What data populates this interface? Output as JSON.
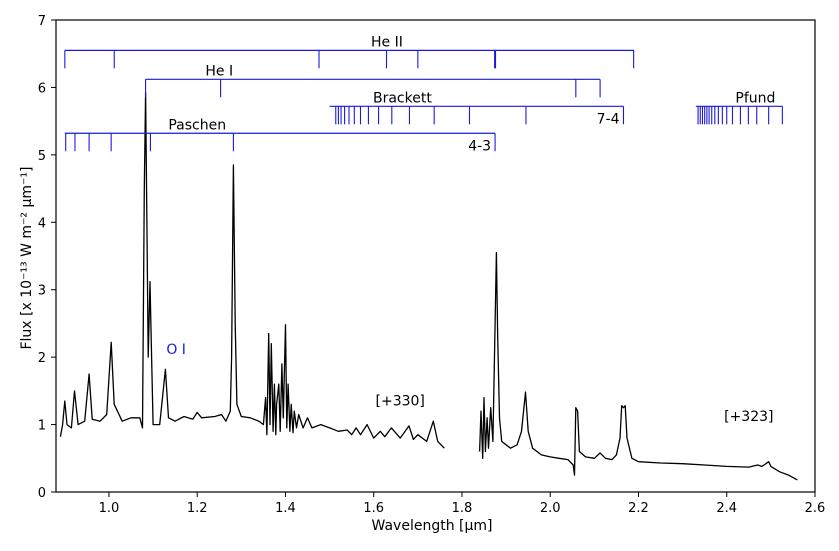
{
  "chart_data": {
    "type": "line",
    "xlabel": "Wavelength [μm]",
    "ylabel": "Flux [x 10⁻¹³ W m⁻² μm⁻¹]",
    "xlim": [
      0.88,
      2.6
    ],
    "ylim": [
      0,
      7
    ],
    "xticks": [
      "1.0",
      "1.2",
      "1.4",
      "1.6",
      "1.8",
      "2.0",
      "2.2",
      "2.4",
      "2.6"
    ],
    "yticks": [
      "0",
      "1",
      "2",
      "3",
      "4",
      "5",
      "6",
      "7"
    ],
    "grid": false,
    "line_color": "#000000",
    "marker_color": "#1a1adc",
    "annotations": [
      {
        "text": "[+330]",
        "x": 1.66,
        "y": 1.28
      },
      {
        "text": "[+323]",
        "x": 2.45,
        "y": 1.05
      }
    ],
    "line_series": [
      {
        "name": "He II",
        "bar_y": 6.55,
        "x_start": 0.9,
        "x_end": 2.19,
        "label_x": 1.63,
        "lines": [
          0.9,
          1.012,
          1.476,
          1.629,
          1.7,
          1.874,
          1.876,
          2.189
        ]
      },
      {
        "name": "He I",
        "bar_y": 6.12,
        "x_start": 1.083,
        "x_end": 2.113,
        "label_x": 1.25,
        "lines": [
          1.083,
          1.253,
          2.058,
          2.113
        ]
      },
      {
        "name": "Brackett",
        "bar_y": 5.72,
        "x_start": 1.5,
        "x_end": 2.166,
        "label_x": 1.665,
        "end_label": "7-4",
        "lines": [
          1.514,
          1.52,
          1.526,
          1.534,
          1.544,
          1.556,
          1.57,
          1.588,
          1.611,
          1.641,
          1.681,
          1.737,
          1.817,
          1.945,
          2.166
        ]
      },
      {
        "name": "Pfund",
        "bar_y": 5.72,
        "x_start": 2.33,
        "x_end": 2.526,
        "label_x": 2.465,
        "lines": [
          2.335,
          2.34,
          2.345,
          2.35,
          2.355,
          2.36,
          2.366,
          2.373,
          2.381,
          2.39,
          2.4,
          2.413,
          2.431,
          2.449,
          2.468,
          2.495,
          2.526
        ]
      },
      {
        "name": "Paschen",
        "bar_y": 5.32,
        "x_start": 0.9,
        "x_end": 1.875,
        "label_x": 1.2,
        "end_label": "4-3",
        "lines": [
          0.902,
          0.923,
          0.955,
          1.005,
          1.094,
          1.282,
          1.875
        ]
      }
    ],
    "oi_label": {
      "text": "O I",
      "x": 1.13,
      "y": 2.05
    },
    "spectrum_segments": [
      [
        [
          0.89,
          0.82
        ],
        [
          0.895,
          1.0
        ],
        [
          0.9,
          1.35
        ],
        [
          0.905,
          1.0
        ],
        [
          0.915,
          0.95
        ],
        [
          0.922,
          1.5
        ],
        [
          0.93,
          1.0
        ],
        [
          0.945,
          1.05
        ],
        [
          0.955,
          1.75
        ],
        [
          0.962,
          1.08
        ],
        [
          0.98,
          1.05
        ],
        [
          0.995,
          1.15
        ],
        [
          1.005,
          2.22
        ],
        [
          1.012,
          1.3
        ],
        [
          1.03,
          1.05
        ],
        [
          1.05,
          1.1
        ],
        [
          1.07,
          1.1
        ],
        [
          1.076,
          0.95
        ],
        [
          1.08,
          4.5
        ],
        [
          1.083,
          5.92
        ],
        [
          1.086,
          4.0
        ],
        [
          1.089,
          2.0
        ],
        [
          1.093,
          3.12
        ],
        [
          1.096,
          2.2
        ],
        [
          1.1,
          1.0
        ],
        [
          1.115,
          1.0
        ],
        [
          1.128,
          1.82
        ],
        [
          1.135,
          1.1
        ],
        [
          1.15,
          1.05
        ],
        [
          1.17,
          1.12
        ],
        [
          1.19,
          1.08
        ],
        [
          1.2,
          1.18
        ],
        [
          1.21,
          1.1
        ],
        [
          1.24,
          1.12
        ],
        [
          1.255,
          1.15
        ],
        [
          1.265,
          1.05
        ],
        [
          1.275,
          1.2
        ],
        [
          1.278,
          2.0
        ],
        [
          1.282,
          4.85
        ],
        [
          1.286,
          2.5
        ],
        [
          1.29,
          1.3
        ],
        [
          1.3,
          1.12
        ],
        [
          1.32,
          1.1
        ],
        [
          1.34,
          1.05
        ],
        [
          1.35,
          1.0
        ],
        [
          1.355,
          1.4
        ],
        [
          1.358,
          0.85
        ],
        [
          1.362,
          2.35
        ],
        [
          1.365,
          1.0
        ],
        [
          1.368,
          2.2
        ],
        [
          1.372,
          0.9
        ],
        [
          1.375,
          1.6
        ],
        [
          1.378,
          0.85
        ],
        [
          1.38,
          1.3
        ],
        [
          1.385,
          1.6
        ],
        [
          1.388,
          0.9
        ],
        [
          1.392,
          1.9
        ],
        [
          1.395,
          1.1
        ],
        [
          1.4,
          2.48
        ],
        [
          1.403,
          0.95
        ],
        [
          1.406,
          1.6
        ],
        [
          1.41,
          0.9
        ],
        [
          1.413,
          1.3
        ],
        [
          1.417,
          0.88
        ],
        [
          1.42,
          1.2
        ],
        [
          1.425,
          0.95
        ],
        [
          1.43,
          1.15
        ],
        [
          1.44,
          0.95
        ],
        [
          1.45,
          1.1
        ],
        [
          1.46,
          0.95
        ],
        [
          1.48,
          1.0
        ],
        [
          1.5,
          0.95
        ],
        [
          1.52,
          0.9
        ],
        [
          1.54,
          0.92
        ],
        [
          1.55,
          0.85
        ],
        [
          1.56,
          0.95
        ],
        [
          1.57,
          0.85
        ],
        [
          1.585,
          1.0
        ],
        [
          1.6,
          0.8
        ],
        [
          1.615,
          0.9
        ],
        [
          1.625,
          0.82
        ],
        [
          1.64,
          0.95
        ],
        [
          1.66,
          0.8
        ],
        [
          1.68,
          0.98
        ],
        [
          1.69,
          0.78
        ],
        [
          1.7,
          0.85
        ],
        [
          1.72,
          0.75
        ],
        [
          1.735,
          1.05
        ],
        [
          1.745,
          0.75
        ],
        [
          1.76,
          0.65
        ]
      ],
      [
        [
          1.84,
          0.6
        ],
        [
          1.843,
          1.2
        ],
        [
          1.847,
          0.5
        ],
        [
          1.85,
          1.4
        ],
        [
          1.853,
          0.6
        ],
        [
          1.857,
          1.1
        ],
        [
          1.86,
          0.65
        ],
        [
          1.865,
          1.25
        ],
        [
          1.87,
          0.75
        ],
        [
          1.875,
          2.5
        ],
        [
          1.878,
          3.55
        ],
        [
          1.881,
          2.3
        ],
        [
          1.885,
          1.1
        ],
        [
          1.89,
          0.75
        ],
        [
          1.9,
          0.7
        ],
        [
          1.91,
          0.65
        ],
        [
          1.925,
          0.7
        ],
        [
          1.935,
          0.9
        ],
        [
          1.944,
          1.48
        ],
        [
          1.95,
          0.9
        ],
        [
          1.96,
          0.65
        ],
        [
          1.98,
          0.55
        ],
        [
          2.0,
          0.52
        ],
        [
          2.02,
          0.5
        ],
        [
          2.04,
          0.48
        ],
        [
          2.052,
          0.4
        ],
        [
          2.055,
          0.25
        ],
        [
          2.058,
          1.25
        ],
        [
          2.062,
          1.2
        ],
        [
          2.066,
          0.6
        ],
        [
          2.08,
          0.52
        ],
        [
          2.1,
          0.5
        ],
        [
          2.113,
          0.58
        ],
        [
          2.125,
          0.5
        ],
        [
          2.14,
          0.48
        ],
        [
          2.15,
          0.55
        ],
        [
          2.158,
          0.8
        ],
        [
          2.162,
          1.28
        ],
        [
          2.166,
          1.25
        ],
        [
          2.17,
          1.28
        ],
        [
          2.174,
          0.8
        ],
        [
          2.185,
          0.5
        ],
        [
          2.2,
          0.45
        ],
        [
          2.25,
          0.43
        ],
        [
          2.3,
          0.42
        ],
        [
          2.35,
          0.4
        ],
        [
          2.4,
          0.38
        ],
        [
          2.45,
          0.37
        ],
        [
          2.47,
          0.4
        ],
        [
          2.48,
          0.38
        ],
        [
          2.495,
          0.45
        ],
        [
          2.5,
          0.38
        ],
        [
          2.52,
          0.3
        ],
        [
          2.54,
          0.25
        ],
        [
          2.56,
          0.18
        ]
      ]
    ]
  }
}
